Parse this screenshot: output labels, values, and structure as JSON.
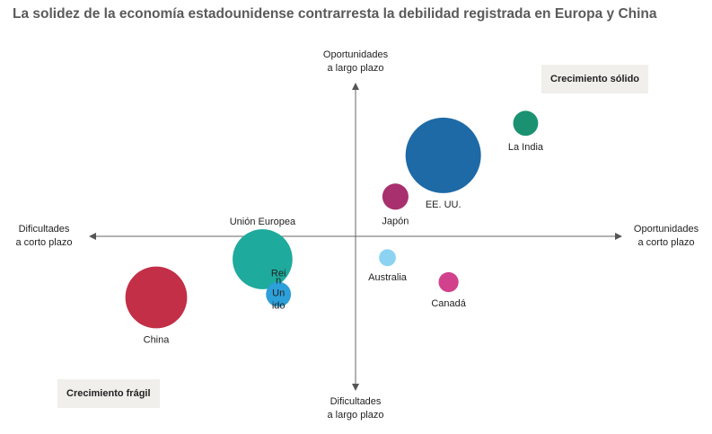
{
  "title": "La solidez de la economía estadounidense contrarresta la debilidad registrada en Europa y China",
  "quadrants": {
    "top_right": "Crecimiento sólido",
    "bottom_left": "Crecimiento frágil"
  },
  "axes": {
    "top": [
      "Oportunidades",
      "a largo plazo"
    ],
    "bottom": [
      "Dificultades",
      "a largo plazo"
    ],
    "left": [
      "Dificultades",
      "a corto plazo"
    ],
    "right": [
      "Oportunidades",
      "a corto plazo"
    ]
  },
  "chart_data": {
    "type": "scatter",
    "title": "La solidez de la economía estadounidense contrarresta la debilidad registrada en Europa y China",
    "xlabel": "Dificultades a corto plazo ↔ Oportunidades a corto plazo",
    "ylabel": "Dificultades a largo plazo ↔ Oportunidades a largo plazo",
    "xlim": [
      -10,
      10
    ],
    "ylim": [
      -10,
      10
    ],
    "grid": false,
    "points": [
      {
        "name": "EE. UU.",
        "x": 3.3,
        "y": 5.3,
        "size": 100,
        "color": "#1e6aa6"
      },
      {
        "name": "La India",
        "x": 6.4,
        "y": 7.4,
        "size": 11,
        "color": "#1a9272"
      },
      {
        "name": "Japón",
        "x": 1.5,
        "y": 2.6,
        "size": 12,
        "color": "#a8306e"
      },
      {
        "name": "Australia",
        "x": 1.2,
        "y": -1.4,
        "size": 5,
        "color": "#8cd3f2"
      },
      {
        "name": "Canadá",
        "x": 3.5,
        "y": -3.0,
        "size": 7,
        "color": "#d2418b"
      },
      {
        "name": "Unión Europea",
        "x": -3.5,
        "y": -1.5,
        "size": 63,
        "color": "#1eaa9c"
      },
      {
        "name": "Reino Unido",
        "x": -2.9,
        "y": -3.8,
        "size": 11,
        "color": "#2d9fd9"
      },
      {
        "name": "China",
        "x": -7.5,
        "y": -4.0,
        "size": 67,
        "color": "#c22f47"
      }
    ]
  }
}
